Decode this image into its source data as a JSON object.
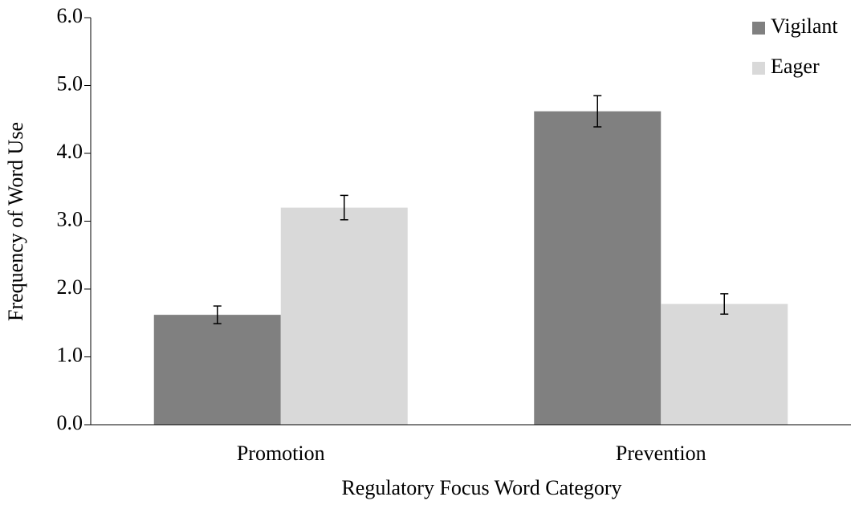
{
  "chart_data": {
    "type": "bar",
    "x_label": "Regulatory Focus Word Category",
    "y_label": "Frequency of Word Use",
    "categories": [
      "Promotion",
      "Prevention"
    ],
    "series": [
      {
        "name": "Vigilant",
        "color": "#808080",
        "values": [
          1.62,
          4.62
        ],
        "errors": [
          0.13,
          0.23
        ]
      },
      {
        "name": "Eager",
        "color": "#d9d9d9",
        "values": [
          3.2,
          1.78
        ],
        "errors": [
          0.18,
          0.15
        ]
      }
    ],
    "ylim": [
      0,
      6
    ],
    "yticks": [
      {
        "value": 0,
        "label": "0.0"
      },
      {
        "value": 1,
        "label": "1.0"
      },
      {
        "value": 2,
        "label": "2.0"
      },
      {
        "value": 3,
        "label": "3.0"
      },
      {
        "value": 4,
        "label": "4.0"
      },
      {
        "value": 5,
        "label": "5.0"
      },
      {
        "value": 6,
        "label": "6.0"
      }
    ],
    "legend": "top-right"
  }
}
